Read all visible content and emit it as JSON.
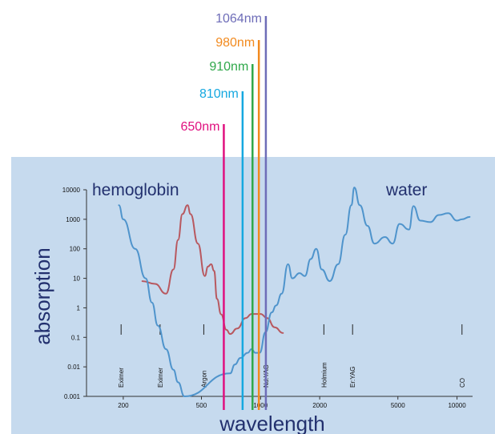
{
  "chart_data": {
    "type": "line",
    "xlabel": "wavelength",
    "ylabel": "absorption",
    "x_scale": "log",
    "y_scale": "log",
    "xlim": [
      130,
      12000
    ],
    "ylim": [
      0.001,
      10000
    ],
    "x_ticks": [
      200,
      500,
      1000,
      2000,
      5000,
      10000
    ],
    "x_tick_labels": [
      "200",
      "500",
      "1000",
      "2000",
      "5000",
      "10000"
    ],
    "y_ticks": [
      0.001,
      0.01,
      0.1,
      1,
      10,
      100,
      1000,
      10000
    ],
    "y_tick_labels": [
      "0.001",
      "0.01",
      "0.1",
      "1",
      "10",
      "100",
      "1000",
      "10000"
    ],
    "grid": false,
    "background_color": "#c6daee",
    "series": [
      {
        "name": "hemoglobin",
        "color": "#b8585f",
        "points": [
          [
            250,
            8
          ],
          [
            290,
            6.5
          ],
          [
            330,
            3
          ],
          [
            360,
            20
          ],
          [
            380,
            200
          ],
          [
            400,
            1500
          ],
          [
            425,
            3000
          ],
          [
            440,
            1500
          ],
          [
            480,
            150
          ],
          [
            520,
            12
          ],
          [
            540,
            25
          ],
          [
            560,
            30
          ],
          [
            580,
            18
          ],
          [
            600,
            2
          ],
          [
            630,
            0.6
          ],
          [
            670,
            0.18
          ],
          [
            700,
            0.13
          ],
          [
            760,
            0.2
          ],
          [
            840,
            0.45
          ],
          [
            900,
            0.62
          ],
          [
            1000,
            0.62
          ],
          [
            1080,
            0.45
          ],
          [
            1180,
            0.22
          ],
          [
            1300,
            0.14
          ]
        ]
      },
      {
        "name": "water",
        "color": "#4f94cc",
        "points": [
          [
            190,
            3000
          ],
          [
            200,
            1000
          ],
          [
            230,
            100
          ],
          [
            260,
            10
          ],
          [
            280,
            1.5
          ],
          [
            300,
            0.25
          ],
          [
            330,
            0.04
          ],
          [
            360,
            0.008
          ],
          [
            380,
            0.003
          ],
          [
            410,
            0.001
          ],
          [
            700,
            0.006
          ],
          [
            740,
            0.012
          ],
          [
            790,
            0.02
          ],
          [
            860,
            0.03
          ],
          [
            900,
            0.04
          ],
          [
            940,
            0.03
          ],
          [
            990,
            0.03
          ],
          [
            1060,
            0.15
          ],
          [
            1140,
            0.7
          ],
          [
            1200,
            1.2
          ],
          [
            1280,
            3
          ],
          [
            1380,
            30
          ],
          [
            1450,
            10
          ],
          [
            1580,
            15
          ],
          [
            1680,
            12
          ],
          [
            1800,
            45
          ],
          [
            1920,
            100
          ],
          [
            2050,
            20
          ],
          [
            2250,
            8
          ],
          [
            2480,
            30
          ],
          [
            2700,
            300
          ],
          [
            2900,
            3000
          ],
          [
            3000,
            12000
          ],
          [
            3200,
            3000
          ],
          [
            3500,
            600
          ],
          [
            3800,
            150
          ],
          [
            4300,
            250
          ],
          [
            4700,
            150
          ],
          [
            5100,
            700
          ],
          [
            5700,
            450
          ],
          [
            6000,
            2800
          ],
          [
            6500,
            900
          ],
          [
            7300,
            800
          ],
          [
            8100,
            1400
          ],
          [
            9000,
            1600
          ],
          [
            10000,
            900
          ],
          [
            10600,
            1000
          ],
          [
            11600,
            1200
          ]
        ]
      }
    ],
    "laser_markers": [
      {
        "label": "Eximer",
        "x": 195
      },
      {
        "label": "Eximer",
        "x": 308
      },
      {
        "label": "Argon",
        "x": 514
      },
      {
        "label": "Nd:YAG",
        "x": 1064
      },
      {
        "label": "Holmium",
        "x": 2100
      },
      {
        "label": "Er:YAG",
        "x": 2940
      },
      {
        "label": "CO",
        "x": 10600
      }
    ],
    "wavelength_lines": [
      {
        "label": "650nm",
        "x": 650,
        "color": "#e0107f"
      },
      {
        "label": "810nm",
        "x": 810,
        "color": "#15a8e0"
      },
      {
        "label": "910nm",
        "x": 910,
        "color": "#2fa84a"
      },
      {
        "label": "980nm",
        "x": 980,
        "color": "#f28a1e"
      },
      {
        "label": "1064nm",
        "x": 1064,
        "color": "#6e6db8"
      }
    ]
  }
}
